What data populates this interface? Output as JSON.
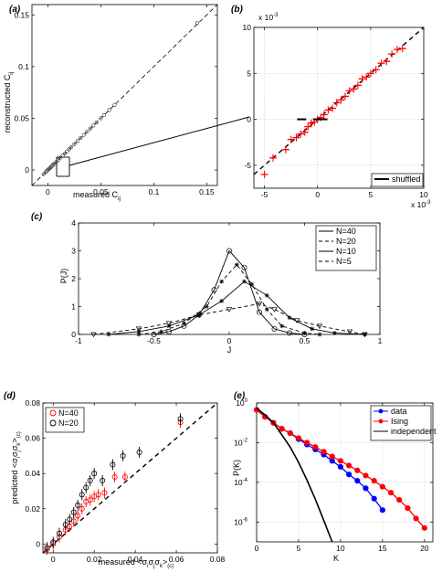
{
  "chart_data": [
    {
      "panel": "(a)",
      "type": "scatter",
      "xlabel": "measured C",
      "xlabel_sub": "ij",
      "ylabel": "reconstructed C",
      "ylabel_sub": "ij",
      "xlim": [
        -0.015,
        0.16
      ],
      "ylim": [
        -0.015,
        0.16
      ],
      "xticks": [
        {
          "v": 0,
          "t": "0"
        },
        {
          "v": 0.05,
          "t": "0.05"
        },
        {
          "v": 0.1,
          "t": "0.1"
        },
        {
          "v": 0.15,
          "t": "0.15"
        }
      ],
      "yticks": [
        {
          "v": 0,
          "t": "0"
        },
        {
          "v": 0.05,
          "t": "0.05"
        },
        {
          "v": 0.1,
          "t": "0.1"
        },
        {
          "v": 0.15,
          "t": "0.15"
        }
      ],
      "series": [
        {
          "values": [
            [
              -0.004,
              -0.004
            ],
            [
              -0.002,
              -0.002
            ],
            [
              -0.001,
              -0.001
            ],
            [
              0.0,
              0.0
            ],
            [
              0.001,
              0.001
            ],
            [
              0.002,
              0.002
            ],
            [
              0.003,
              0.003
            ],
            [
              0.004,
              0.004
            ],
            [
              0.005,
              0.005
            ],
            [
              0.006,
              0.006
            ],
            [
              0.008,
              0.008
            ],
            [
              0.01,
              0.01
            ],
            [
              0.012,
              0.012
            ],
            [
              0.014,
              0.014
            ],
            [
              0.016,
              0.016
            ],
            [
              0.018,
              0.018
            ],
            [
              0.02,
              0.02
            ],
            [
              0.022,
              0.022
            ],
            [
              0.025,
              0.025
            ],
            [
              0.028,
              0.028
            ],
            [
              0.031,
              0.031
            ],
            [
              0.034,
              0.034
            ],
            [
              0.037,
              0.037
            ],
            [
              0.04,
              0.04
            ],
            [
              0.043,
              0.043
            ],
            [
              0.046,
              0.046
            ],
            [
              0.05,
              0.05
            ],
            [
              0.053,
              0.053
            ],
            [
              0.058,
              0.058
            ],
            [
              0.063,
              0.063
            ],
            [
              0.141,
              0.142
            ]
          ]
        }
      ],
      "reference_line": "identity"
    },
    {
      "panel": "(b)",
      "type": "scatter",
      "x_exponent": "x 10",
      "x_exponent_power": "-3",
      "y_exponent": "x 10",
      "y_exponent_power": "-3",
      "xlim": [
        -6,
        10
      ],
      "ylim": [
        -7.5,
        10
      ],
      "xticks": [
        {
          "v": -5,
          "t": "-5"
        },
        {
          "v": 0,
          "t": "0"
        },
        {
          "v": 5,
          "t": "5"
        },
        {
          "v": 10,
          "t": "10"
        }
      ],
      "yticks": [
        {
          "v": -5,
          "t": "-5"
        },
        {
          "v": 0,
          "t": "0"
        },
        {
          "v": 5,
          "t": "5"
        },
        {
          "v": 10,
          "t": "10"
        }
      ],
      "legend": [
        "shuffled"
      ],
      "legend_position": "bottom-right",
      "series": [
        {
          "color": "#ff0000",
          "values": [
            [
              -5.0,
              -6.0
            ],
            [
              -4.2,
              -4.2
            ],
            [
              -3.0,
              -3.3
            ],
            [
              -2.5,
              -2.2
            ],
            [
              -2.0,
              -2.0
            ],
            [
              -1.6,
              -1.6
            ],
            [
              -1.2,
              -1.4
            ],
            [
              -0.9,
              -0.8
            ],
            [
              -0.6,
              -0.4
            ],
            [
              -0.3,
              -0.3
            ],
            [
              0.0,
              0.0
            ],
            [
              0.3,
              0.2
            ],
            [
              0.6,
              0.5
            ],
            [
              1.0,
              1.0
            ],
            [
              1.4,
              1.2
            ],
            [
              1.8,
              1.8
            ],
            [
              2.2,
              2.1
            ],
            [
              2.6,
              2.5
            ],
            [
              3.0,
              3.1
            ],
            [
              3.4,
              3.3
            ],
            [
              3.8,
              3.7
            ],
            [
              4.2,
              4.4
            ],
            [
              4.6,
              4.6
            ],
            [
              5.0,
              5.0
            ],
            [
              5.5,
              5.4
            ],
            [
              6.0,
              6.1
            ],
            [
              6.5,
              6.3
            ],
            [
              7.0,
              7.1
            ],
            [
              7.5,
              7.6
            ],
            [
              8.0,
              7.7
            ]
          ]
        },
        {
          "color": "#000000",
          "name": "shuffled",
          "values": [
            [
              -1.5,
              0.0
            ],
            [
              0.0,
              0.0
            ],
            [
              0.5,
              0.0
            ]
          ]
        }
      ],
      "reference_line": "identity"
    },
    {
      "panel": "(c)",
      "type": "line",
      "xlabel": "J",
      "ylabel": "P(J)",
      "xlim": [
        -1,
        1
      ],
      "ylim": [
        0,
        4
      ],
      "xticks": [
        {
          "v": -1,
          "t": "-1"
        },
        {
          "v": -0.5,
          "t": "-0.5"
        },
        {
          "v": 0,
          "t": "0"
        },
        {
          "v": 0.5,
          "t": "0.5"
        },
        {
          "v": 1,
          "t": "1"
        }
      ],
      "yticks": [
        {
          "v": 0,
          "t": "0"
        },
        {
          "v": 1,
          "t": "1"
        },
        {
          "v": 2,
          "t": "2"
        },
        {
          "v": 3,
          "t": "3"
        },
        {
          "v": 4,
          "t": "4"
        }
      ],
      "legend": [
        "N=40",
        "N=20",
        "N=10",
        "N=5"
      ],
      "legend_position": "top-right",
      "series": [
        {
          "name": "N=40",
          "marker": "o",
          "dash": "",
          "values": [
            [
              -0.5,
              0.0
            ],
            [
              -0.4,
              0.1
            ],
            [
              -0.3,
              0.3
            ],
            [
              -0.2,
              0.7
            ],
            [
              -0.1,
              1.6
            ],
            [
              0.0,
              3.0
            ],
            [
              0.1,
              2.4
            ],
            [
              0.2,
              0.8
            ],
            [
              0.3,
              0.2
            ],
            [
              0.4,
              0.05
            ],
            [
              0.5,
              0.0
            ]
          ]
        },
        {
          "name": "N=20",
          "marker": "*",
          "dash": "4,3",
          "values": [
            [
              -0.6,
              0.0
            ],
            [
              -0.45,
              0.1
            ],
            [
              -0.3,
              0.4
            ],
            [
              -0.15,
              1.0
            ],
            [
              -0.05,
              1.9
            ],
            [
              0.05,
              2.5
            ],
            [
              0.15,
              1.8
            ],
            [
              0.25,
              0.9
            ],
            [
              0.35,
              0.3
            ],
            [
              0.5,
              0.05
            ],
            [
              0.6,
              0.0
            ]
          ]
        },
        {
          "name": "N=10",
          "marker": "x",
          "dash": "",
          "values": [
            [
              -0.8,
              0.0
            ],
            [
              -0.6,
              0.1
            ],
            [
              -0.4,
              0.3
            ],
            [
              -0.2,
              0.7
            ],
            [
              -0.05,
              1.2
            ],
            [
              0.1,
              1.9
            ],
            [
              0.25,
              1.4
            ],
            [
              0.4,
              0.6
            ],
            [
              0.55,
              0.2
            ],
            [
              0.7,
              0.05
            ],
            [
              0.9,
              0.0
            ]
          ]
        },
        {
          "name": "N=5",
          "marker": "v",
          "dash": "4,3",
          "values": [
            [
              -0.9,
              0.0
            ],
            [
              -0.6,
              0.2
            ],
            [
              -0.4,
              0.4
            ],
            [
              -0.2,
              0.7
            ],
            [
              0.0,
              0.9
            ],
            [
              0.2,
              1.1
            ],
            [
              0.3,
              0.9
            ],
            [
              0.45,
              0.5
            ],
            [
              0.6,
              0.3
            ],
            [
              0.8,
              0.1
            ],
            [
              0.9,
              0.0
            ]
          ]
        }
      ]
    },
    {
      "panel": "(d)",
      "type": "scatter",
      "xlabel": "measured <σ",
      "xlabel_tail": ">",
      "xlabel_sub": "i",
      "xlabel_sub2": "j",
      "xlabel_sub3": "k",
      "xlabel_sub4": "(c)",
      "ylabel": "predicted <σ",
      "ylabel_tail": ">",
      "ylabel_sub": "i",
      "ylabel_sub2": "j",
      "ylabel_sub3": "k",
      "ylabel_sub4": "(c)",
      "xlim": [
        -0.005,
        0.08
      ],
      "ylim": [
        -0.005,
        0.08
      ],
      "xticks": [
        {
          "v": 0,
          "t": "0"
        },
        {
          "v": 0.02,
          "t": "0.02"
        },
        {
          "v": 0.04,
          "t": "0.04"
        },
        {
          "v": 0.06,
          "t": "0.06"
        },
        {
          "v": 0.08,
          "t": "0.08"
        }
      ],
      "yticks": [
        {
          "v": 0,
          "t": "0"
        },
        {
          "v": 0.02,
          "t": "0.02"
        },
        {
          "v": 0.04,
          "t": "0.04"
        },
        {
          "v": 0.06,
          "t": "0.06"
        },
        {
          "v": 0.08,
          "t": "0.08"
        }
      ],
      "legend": [
        "N=40",
        "N=20"
      ],
      "legend_position": "top-left",
      "series": [
        {
          "name": "N=40",
          "color": "#ff0000",
          "values": [
            [
              -0.003,
              -0.003
            ],
            [
              0.0,
              0.0
            ],
            [
              0.003,
              0.004
            ],
            [
              0.006,
              0.008
            ],
            [
              0.008,
              0.01
            ],
            [
              0.01,
              0.013
            ],
            [
              0.012,
              0.016
            ],
            [
              0.014,
              0.02
            ],
            [
              0.016,
              0.024
            ],
            [
              0.018,
              0.025
            ],
            [
              0.02,
              0.027
            ],
            [
              0.022,
              0.028
            ],
            [
              0.025,
              0.029
            ],
            [
              0.03,
              0.038
            ],
            [
              0.035,
              0.038
            ],
            [
              0.062,
              0.069
            ]
          ]
        },
        {
          "name": "N=20",
          "color": "#000000",
          "values": [
            [
              -0.003,
              -0.002
            ],
            [
              0.0,
              0.001
            ],
            [
              0.003,
              0.006
            ],
            [
              0.006,
              0.011
            ],
            [
              0.008,
              0.014
            ],
            [
              0.01,
              0.018
            ],
            [
              0.012,
              0.022
            ],
            [
              0.014,
              0.028
            ],
            [
              0.016,
              0.032
            ],
            [
              0.018,
              0.036
            ],
            [
              0.02,
              0.04
            ],
            [
              0.024,
              0.036
            ],
            [
              0.029,
              0.045
            ],
            [
              0.034,
              0.05
            ],
            [
              0.042,
              0.052
            ],
            [
              0.062,
              0.071
            ]
          ]
        }
      ],
      "reference_line": "identity"
    },
    {
      "panel": "(e)",
      "type": "line",
      "xlabel": "K",
      "ylabel": "P(K)",
      "yscale": "log",
      "xlim": [
        0,
        21
      ],
      "ylim": [
        1e-07,
        1
      ],
      "xticks": [
        {
          "v": 0,
          "t": "0"
        },
        {
          "v": 5,
          "t": "5"
        },
        {
          "v": 10,
          "t": "10"
        },
        {
          "v": 15,
          "t": "15"
        },
        {
          "v": 20,
          "t": "20"
        }
      ],
      "yticks": [
        {
          "v": 1,
          "t": "10",
          "e": "0"
        },
        {
          "v": 0.01,
          "t": "10",
          "e": "-2"
        },
        {
          "v": 0.0001,
          "t": "10",
          "e": "-4"
        },
        {
          "v": 1e-06,
          "t": "10",
          "e": "-6"
        }
      ],
      "legend": [
        "data",
        "Ising",
        "independent"
      ],
      "legend_position": "top-right",
      "series": [
        {
          "name": "data",
          "color": "#0000ff",
          "values": [
            [
              0,
              0.45
            ],
            [
              1,
              0.2
            ],
            [
              2,
              0.1
            ],
            [
              3,
              0.05
            ],
            [
              4,
              0.03
            ],
            [
              5,
              0.015
            ],
            [
              6,
              0.008
            ],
            [
              7,
              0.0045
            ],
            [
              8,
              0.0025
            ],
            [
              9,
              0.0012
            ],
            [
              10,
              0.0006
            ],
            [
              11,
              0.00025
            ],
            [
              12,
              0.00012
            ],
            [
              13,
              5e-05
            ],
            [
              14,
              1.5e-05
            ],
            [
              15,
              4e-06
            ]
          ]
        },
        {
          "name": "Ising",
          "color": "#ff0000",
          "values": [
            [
              0,
              0.45
            ],
            [
              1,
              0.2
            ],
            [
              2,
              0.1
            ],
            [
              3,
              0.05
            ],
            [
              4,
              0.03
            ],
            [
              5,
              0.017
            ],
            [
              6,
              0.01
            ],
            [
              7,
              0.006
            ],
            [
              8,
              0.0035
            ],
            [
              9,
              0.002
            ],
            [
              10,
              0.0012
            ],
            [
              11,
              0.0007
            ],
            [
              12,
              0.0004
            ],
            [
              13,
              0.00022
            ],
            [
              14,
              0.00012
            ],
            [
              15,
              6e-05
            ],
            [
              16,
              3e-05
            ],
            [
              17,
              1.3e-05
            ],
            [
              18,
              5e-06
            ],
            [
              19,
              1.5e-06
            ],
            [
              20,
              5e-07
            ]
          ]
        },
        {
          "name": "independent",
          "color": "#000000",
          "values": [
            [
              0,
              0.55
            ],
            [
              1,
              0.25
            ],
            [
              2,
              0.1
            ],
            [
              3,
              0.025
            ],
            [
              4,
              0.006
            ],
            [
              5,
              0.001
            ],
            [
              6,
              0.00013
            ],
            [
              7,
              1.4e-05
            ],
            [
              8,
              1.2e-06
            ],
            [
              9,
              1e-07
            ]
          ]
        }
      ]
    }
  ]
}
